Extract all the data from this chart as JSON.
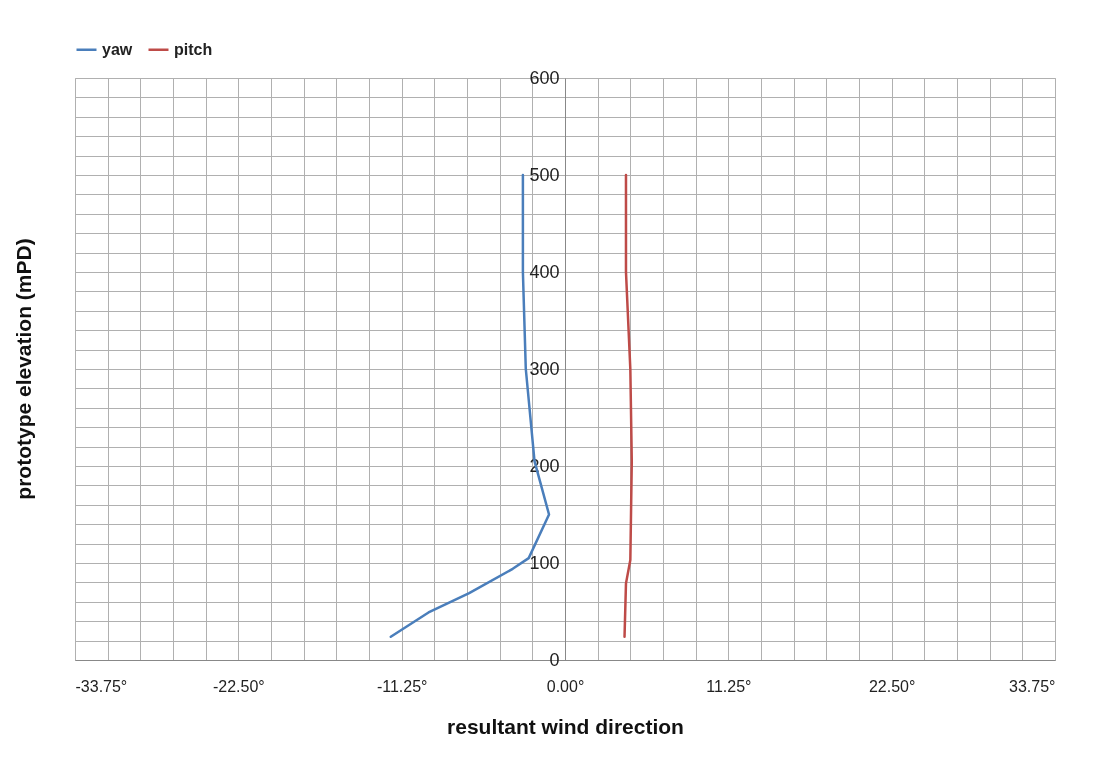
{
  "chart_data": {
    "type": "line",
    "xlabel": "resultant wind direction",
    "ylabel": "prototype elevation (mPD)",
    "xlim": [
      -33.75,
      33.75
    ],
    "xticks": [
      {
        "value": -33.75,
        "label": "-33.75°"
      },
      {
        "value": -31.5,
        "label": null
      },
      {
        "value": -29.25,
        "label": null
      },
      {
        "value": -27,
        "label": null
      },
      {
        "value": -24.75,
        "label": null
      },
      {
        "value": -22.5,
        "label": "-22.50°"
      },
      {
        "value": -20.25,
        "label": null
      },
      {
        "value": -18,
        "label": null
      },
      {
        "value": -15.75,
        "label": null
      },
      {
        "value": -13.5,
        "label": null
      },
      {
        "value": -11.25,
        "label": "-11.25°"
      },
      {
        "value": -9,
        "label": null
      },
      {
        "value": -6.75,
        "label": null
      },
      {
        "value": -4.5,
        "label": null
      },
      {
        "value": -2.25,
        "label": null
      },
      {
        "value": 0,
        "label": "0.00°"
      },
      {
        "value": 2.25,
        "label": null
      },
      {
        "value": 4.5,
        "label": null
      },
      {
        "value": 6.75,
        "label": null
      },
      {
        "value": 9,
        "label": null
      },
      {
        "value": 11.25,
        "label": "11.25°"
      },
      {
        "value": 13.5,
        "label": null
      },
      {
        "value": 15.75,
        "label": null
      },
      {
        "value": 18,
        "label": null
      },
      {
        "value": 20.25,
        "label": null
      },
      {
        "value": 22.5,
        "label": "22.50°"
      },
      {
        "value": 24.75,
        "label": null
      },
      {
        "value": 27,
        "label": null
      },
      {
        "value": 29.25,
        "label": null
      },
      {
        "value": 31.5,
        "label": null
      },
      {
        "value": 33.75,
        "label": "33.75°"
      }
    ],
    "ylim": [
      0,
      600
    ],
    "yticks": [
      0,
      {
        "value": 20,
        "label": null
      },
      {
        "value": 40,
        "label": null
      },
      {
        "value": 60,
        "label": null
      },
      {
        "value": 80,
        "label": null
      },
      100,
      {
        "value": 120,
        "label": null
      },
      {
        "value": 140,
        "label": null
      },
      {
        "value": 160,
        "label": null
      },
      {
        "value": 180,
        "label": null
      },
      200,
      {
        "value": 220,
        "label": null
      },
      {
        "value": 240,
        "label": null
      },
      {
        "value": 260,
        "label": null
      },
      {
        "value": 280,
        "label": null
      },
      300,
      {
        "value": 320,
        "label": null
      },
      {
        "value": 340,
        "label": null
      },
      {
        "value": 360,
        "label": null
      },
      {
        "value": 380,
        "label": null
      },
      400,
      {
        "value": 420,
        "label": null
      },
      {
        "value": 440,
        "label": null
      },
      {
        "value": 460,
        "label": null
      },
      {
        "value": 480,
        "label": null
      },
      500,
      {
        "value": 520,
        "label": null
      },
      {
        "value": 540,
        "label": null
      },
      {
        "value": 560,
        "label": null
      },
      {
        "value": 580,
        "label": null
      },
      600
    ],
    "grid": true,
    "legend": "top",
    "marker": "none",
    "series": [
      {
        "name": "yaw",
        "color": "#4a7ebb",
        "x": [
          -12.0,
          -9.4,
          -6.6,
          -3.6,
          -2.5,
          -1.1,
          -2.1,
          -2.7,
          -2.9,
          -2.9
        ],
        "values": [
          24,
          49,
          69,
          94,
          105,
          150,
          205,
          300,
          400,
          500
        ]
      },
      {
        "name": "pitch",
        "color": "#be4b48",
        "x": [
          4.1,
          4.2,
          4.5,
          4.6,
          4.5,
          4.2,
          4.2
        ],
        "values": [
          24,
          79,
          103,
          205,
          300,
          400,
          500
        ]
      }
    ]
  }
}
